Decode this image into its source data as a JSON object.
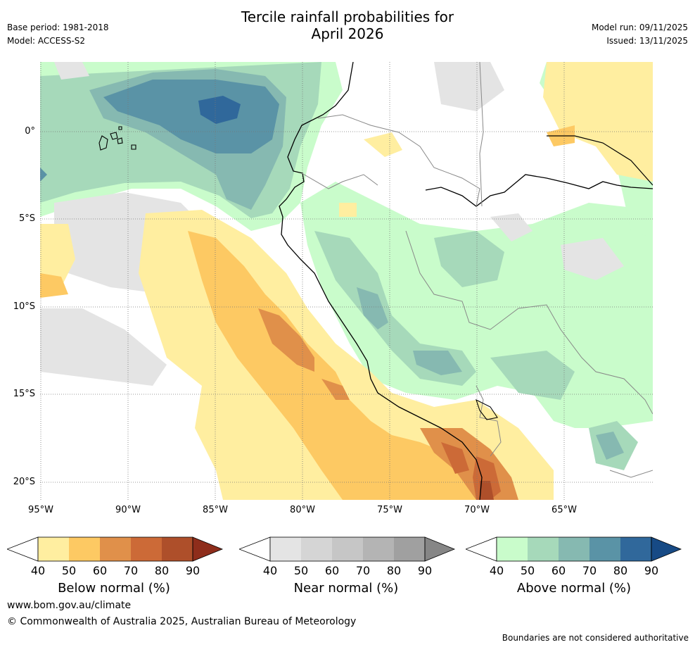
{
  "title_line1": "Tercile rainfall probabilities for",
  "title_line2": "April 2026",
  "base_period": "Base period: 1981-2018",
  "model": "Model: ACCESS-S2",
  "model_run": "Model run: 09/11/2025",
  "issued": "Issued: 13/11/2025",
  "lat_labels": [
    "0°",
    "5°S",
    "10°S",
    "15°S",
    "20°S"
  ],
  "lon_labels": [
    "95°W",
    "90°W",
    "85°W",
    "80°W",
    "75°W",
    "70°W",
    "65°W"
  ],
  "legends": {
    "below": {
      "label": "Below normal (%)",
      "ticks": [
        "40",
        "50",
        "60",
        "70",
        "80",
        "90"
      ],
      "colors": [
        "#ffeea0",
        "#fdc963",
        "#e0904a",
        "#cc6a37",
        "#ae4f2a",
        "#8e2d1b"
      ]
    },
    "near": {
      "label": "Near normal (%)",
      "ticks": [
        "40",
        "50",
        "60",
        "70",
        "80",
        "90"
      ],
      "colors": [
        "#e4e4e4",
        "#d5d5d5",
        "#c6c6c6",
        "#b4b4b4",
        "#a0a0a0",
        "#868686"
      ]
    },
    "above": {
      "label": "Above normal (%)",
      "ticks": [
        "40",
        "50",
        "60",
        "70",
        "80",
        "90"
      ],
      "colors": [
        "#c9fccb",
        "#a6d9ba",
        "#86b9b1",
        "#5a93a6",
        "#30689b",
        "#174a85"
      ]
    }
  },
  "website": "www.bom.gov.au/climate",
  "copyright": "© Commonwealth of Australia 2025, Australian Bureau of Meteorology",
  "disclaimer": "Boundaries are not considered authoritative"
}
